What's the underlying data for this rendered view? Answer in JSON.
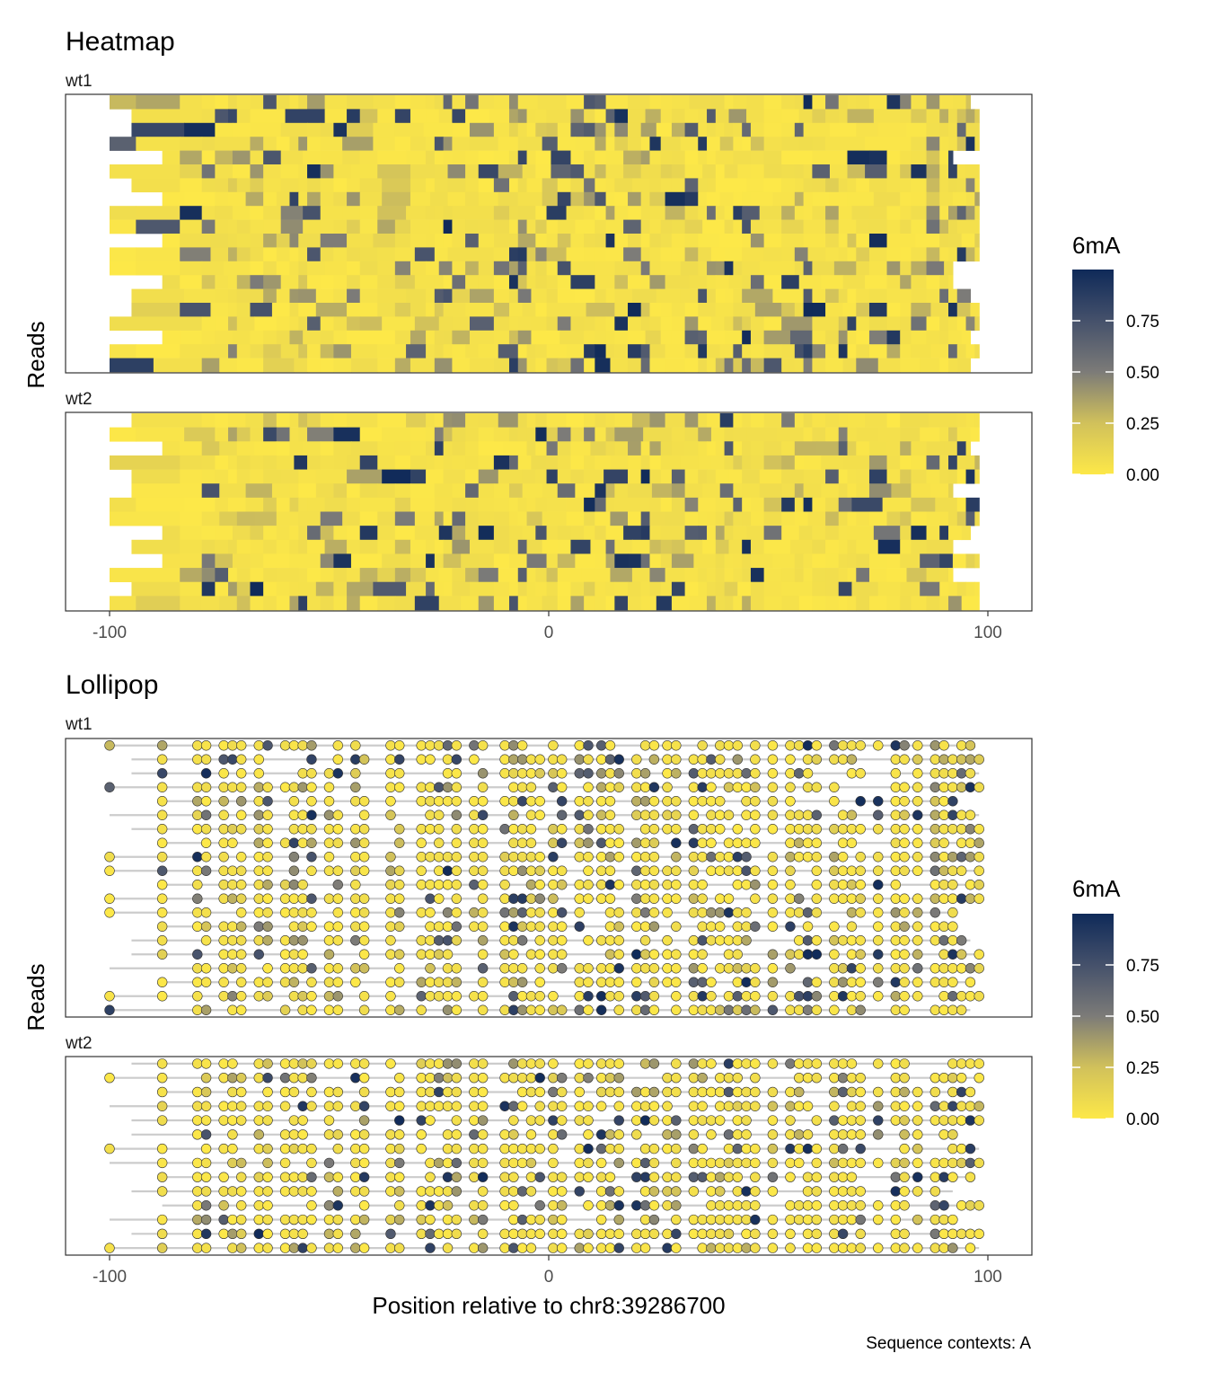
{
  "chart_data": [
    {
      "type": "heatmap",
      "title": "Heatmap",
      "ylabel": "Reads",
      "xlim": [
        -100,
        100
      ],
      "x_ticks": [
        "-100",
        "0",
        "100"
      ],
      "facets": [
        {
          "label": "wt1",
          "n_reads": 20
        },
        {
          "label": "wt2",
          "n_reads": 14
        }
      ],
      "colorbar": {
        "title": "6mA",
        "ticks": [
          "0.00",
          "0.25",
          "0.50",
          "0.75"
        ],
        "range": [
          0,
          1
        ],
        "low_color": "#fde848",
        "mid_color": "#7c7b78",
        "high_color": "#0f2a59"
      }
    },
    {
      "type": "scatter",
      "title": "Lollipop",
      "ylabel": "Reads",
      "xlabel": "Position relative to chr8:39286700",
      "xlim": [
        -100,
        100
      ],
      "x_ticks": [
        "-100",
        "0",
        "100"
      ],
      "facets": [
        {
          "label": "wt1",
          "n_reads": 20
        },
        {
          "label": "wt2",
          "n_reads": 14
        }
      ],
      "colorbar": {
        "title": "6mA",
        "ticks": [
          "0.00",
          "0.25",
          "0.50",
          "0.75"
        ],
        "range": [
          0,
          1
        ]
      },
      "caption": "Sequence contexts: A"
    }
  ],
  "a_positions": [
    -100,
    -88,
    -80,
    -78,
    -74,
    -72,
    -70,
    -66,
    -64,
    -60,
    -58,
    -56,
    -54,
    -50,
    -48,
    -44,
    -42,
    -36,
    -34,
    -29,
    -27,
    -25,
    -23,
    -21,
    -17,
    -15,
    -10,
    -8,
    -6,
    -4,
    -2,
    1,
    3,
    7,
    9,
    12,
    14,
    16,
    20,
    22,
    24,
    27,
    29,
    33,
    35,
    37,
    39,
    41,
    43,
    45,
    47,
    51,
    55,
    57,
    59,
    61,
    65,
    67,
    69,
    71,
    75,
    79,
    81,
    84,
    88,
    90,
    92,
    94,
    96,
    98
  ]
}
